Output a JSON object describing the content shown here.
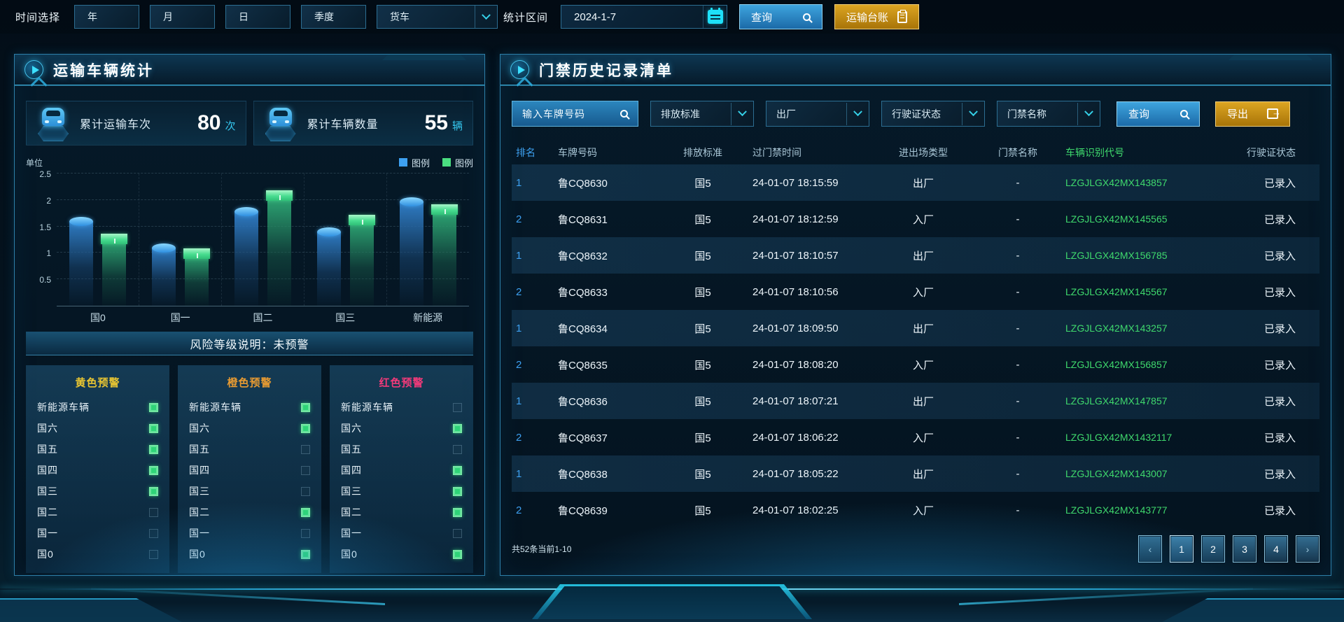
{
  "colors": {
    "accent": "#2ad8f8",
    "query_blue": "#2b8fd0",
    "gold": "#c8921a",
    "rank_blue": "#3da0f0",
    "vin_green": "#3fd96d",
    "yellow_warning": "#e8c532",
    "orange_warning": "#e89b32",
    "red_warning": "#f23a7a"
  },
  "topbar": {
    "time_label": "时间选择",
    "time_buttons": [
      "年",
      "月",
      "日",
      "季度"
    ],
    "vehicle_select": "货车",
    "range_label": "统计区间",
    "date_value": "2024-1-7",
    "query_label": "查询",
    "ledger_label": "运输台账"
  },
  "left_panel": {
    "title": "运输车辆统计",
    "stats": [
      {
        "label": "累计运输车次",
        "value": "80",
        "unit": "次"
      },
      {
        "label": "累计车辆数量",
        "value": "55",
        "unit": "辆"
      }
    ],
    "risk_note": "风险等级说明：未预警",
    "warning_panels": [
      {
        "title": "黄色预警",
        "color": "#e8c532",
        "rows": [
          {
            "label": "新能源车辆",
            "on": true
          },
          {
            "label": "国六",
            "on": true
          },
          {
            "label": "国五",
            "on": true
          },
          {
            "label": "国四",
            "on": true
          },
          {
            "label": "国三",
            "on": true
          },
          {
            "label": "国二",
            "on": false
          },
          {
            "label": "国一",
            "on": false
          },
          {
            "label": "国0",
            "on": false
          }
        ]
      },
      {
        "title": "橙色预警",
        "color": "#e89b32",
        "rows": [
          {
            "label": "新能源车辆",
            "on": true
          },
          {
            "label": "国六",
            "on": true
          },
          {
            "label": "国五",
            "on": false
          },
          {
            "label": "国四",
            "on": false
          },
          {
            "label": "国三",
            "on": false
          },
          {
            "label": "国二",
            "on": true
          },
          {
            "label": "国一",
            "on": false
          },
          {
            "label": "国0",
            "on": true
          }
        ]
      },
      {
        "title": "红色预警",
        "color": "#f23a7a",
        "rows": [
          {
            "label": "新能源车辆",
            "on": false
          },
          {
            "label": "国六",
            "on": true
          },
          {
            "label": "国五",
            "on": false
          },
          {
            "label": "国四",
            "on": true
          },
          {
            "label": "国三",
            "on": true
          },
          {
            "label": "国二",
            "on": true
          },
          {
            "label": "国一",
            "on": false
          },
          {
            "label": "国0",
            "on": true
          }
        ]
      }
    ]
  },
  "chart_data": {
    "type": "bar",
    "title": "",
    "unit_label": "单位",
    "categories": [
      "国0",
      "国一",
      "国二",
      "国三",
      "新能源"
    ],
    "series": [
      {
        "name": "图例",
        "color": "#3da0f0",
        "values": [
          1.6,
          1.1,
          1.78,
          1.4,
          1.97
        ]
      },
      {
        "name": "图例",
        "color": "#4ade80",
        "values": [
          1.25,
          0.97,
          2.07,
          1.6,
          1.8
        ]
      }
    ],
    "ylim": [
      0,
      2.5
    ],
    "yticks": [
      0.5,
      1,
      1.5,
      2,
      2.5
    ],
    "grid": true,
    "legend_position": "top-right"
  },
  "right_panel": {
    "title": "门禁历史记录清单",
    "filters": {
      "search_placeholder": "输入车牌号码",
      "selects": [
        "排放标准",
        "出厂",
        "行驶证状态",
        "门禁名称"
      ],
      "query_label": "查询",
      "export_label": "导出"
    },
    "table": {
      "headers": [
        "排名",
        "车牌号码",
        "排放标准",
        "过门禁时间",
        "进出场类型",
        "门禁名称",
        "车辆识别代号",
        "行驶证状态"
      ],
      "rows": [
        {
          "rank": "1",
          "plate": "鲁CQ8630",
          "std": "国5",
          "time": "24-01-07 18:15:59",
          "type": "出厂",
          "gate": "-",
          "vin": "LZGJLGX42MX143857",
          "status": "已录入"
        },
        {
          "rank": "2",
          "plate": "鲁CQ8631",
          "std": "国5",
          "time": "24-01-07 18:12:59",
          "type": "入厂",
          "gate": "-",
          "vin": "LZGJLGX42MX145565",
          "status": "已录入"
        },
        {
          "rank": "1",
          "plate": "鲁CQ8632",
          "std": "国5",
          "time": "24-01-07 18:10:57",
          "type": "出厂",
          "gate": "-",
          "vin": "LZGJLGX42MX156785",
          "status": "已录入"
        },
        {
          "rank": "2",
          "plate": "鲁CQ8633",
          "std": "国5",
          "time": "24-01-07 18:10:56",
          "type": "入厂",
          "gate": "-",
          "vin": "LZGJLGX42MX145567",
          "status": "已录入"
        },
        {
          "rank": "1",
          "plate": "鲁CQ8634",
          "std": "国5",
          "time": "24-01-07 18:09:50",
          "type": "出厂",
          "gate": "-",
          "vin": "LZGJLGX42MX143257",
          "status": "已录入"
        },
        {
          "rank": "2",
          "plate": "鲁CQ8635",
          "std": "国5",
          "time": "24-01-07 18:08:20",
          "type": "入厂",
          "gate": "-",
          "vin": "LZGJLGX42MX156857",
          "status": "已录入"
        },
        {
          "rank": "1",
          "plate": "鲁CQ8636",
          "std": "国5",
          "time": "24-01-07 18:07:21",
          "type": "出厂",
          "gate": "-",
          "vin": "LZGJLGX42MX147857",
          "status": "已录入"
        },
        {
          "rank": "2",
          "plate": "鲁CQ8637",
          "std": "国5",
          "time": "24-01-07 18:06:22",
          "type": "入厂",
          "gate": "-",
          "vin": "LZGJLGX42MX1432117",
          "status": "已录入"
        },
        {
          "rank": "1",
          "plate": "鲁CQ8638",
          "std": "国5",
          "time": "24-01-07 18:05:22",
          "type": "出厂",
          "gate": "-",
          "vin": "LZGJLGX42MX143007",
          "status": "已录入"
        },
        {
          "rank": "2",
          "plate": "鲁CQ8639",
          "std": "国5",
          "time": "24-01-07 18:02:25",
          "type": "入厂",
          "gate": "-",
          "vin": "LZGJLGX42MX143777",
          "status": "已录入"
        }
      ]
    },
    "footer": {
      "summary": "共52条当前1-10",
      "prev_glyph": "‹",
      "pages": [
        "1",
        "2",
        "3",
        "4"
      ],
      "next_glyph": "›",
      "active_page": "1"
    }
  }
}
